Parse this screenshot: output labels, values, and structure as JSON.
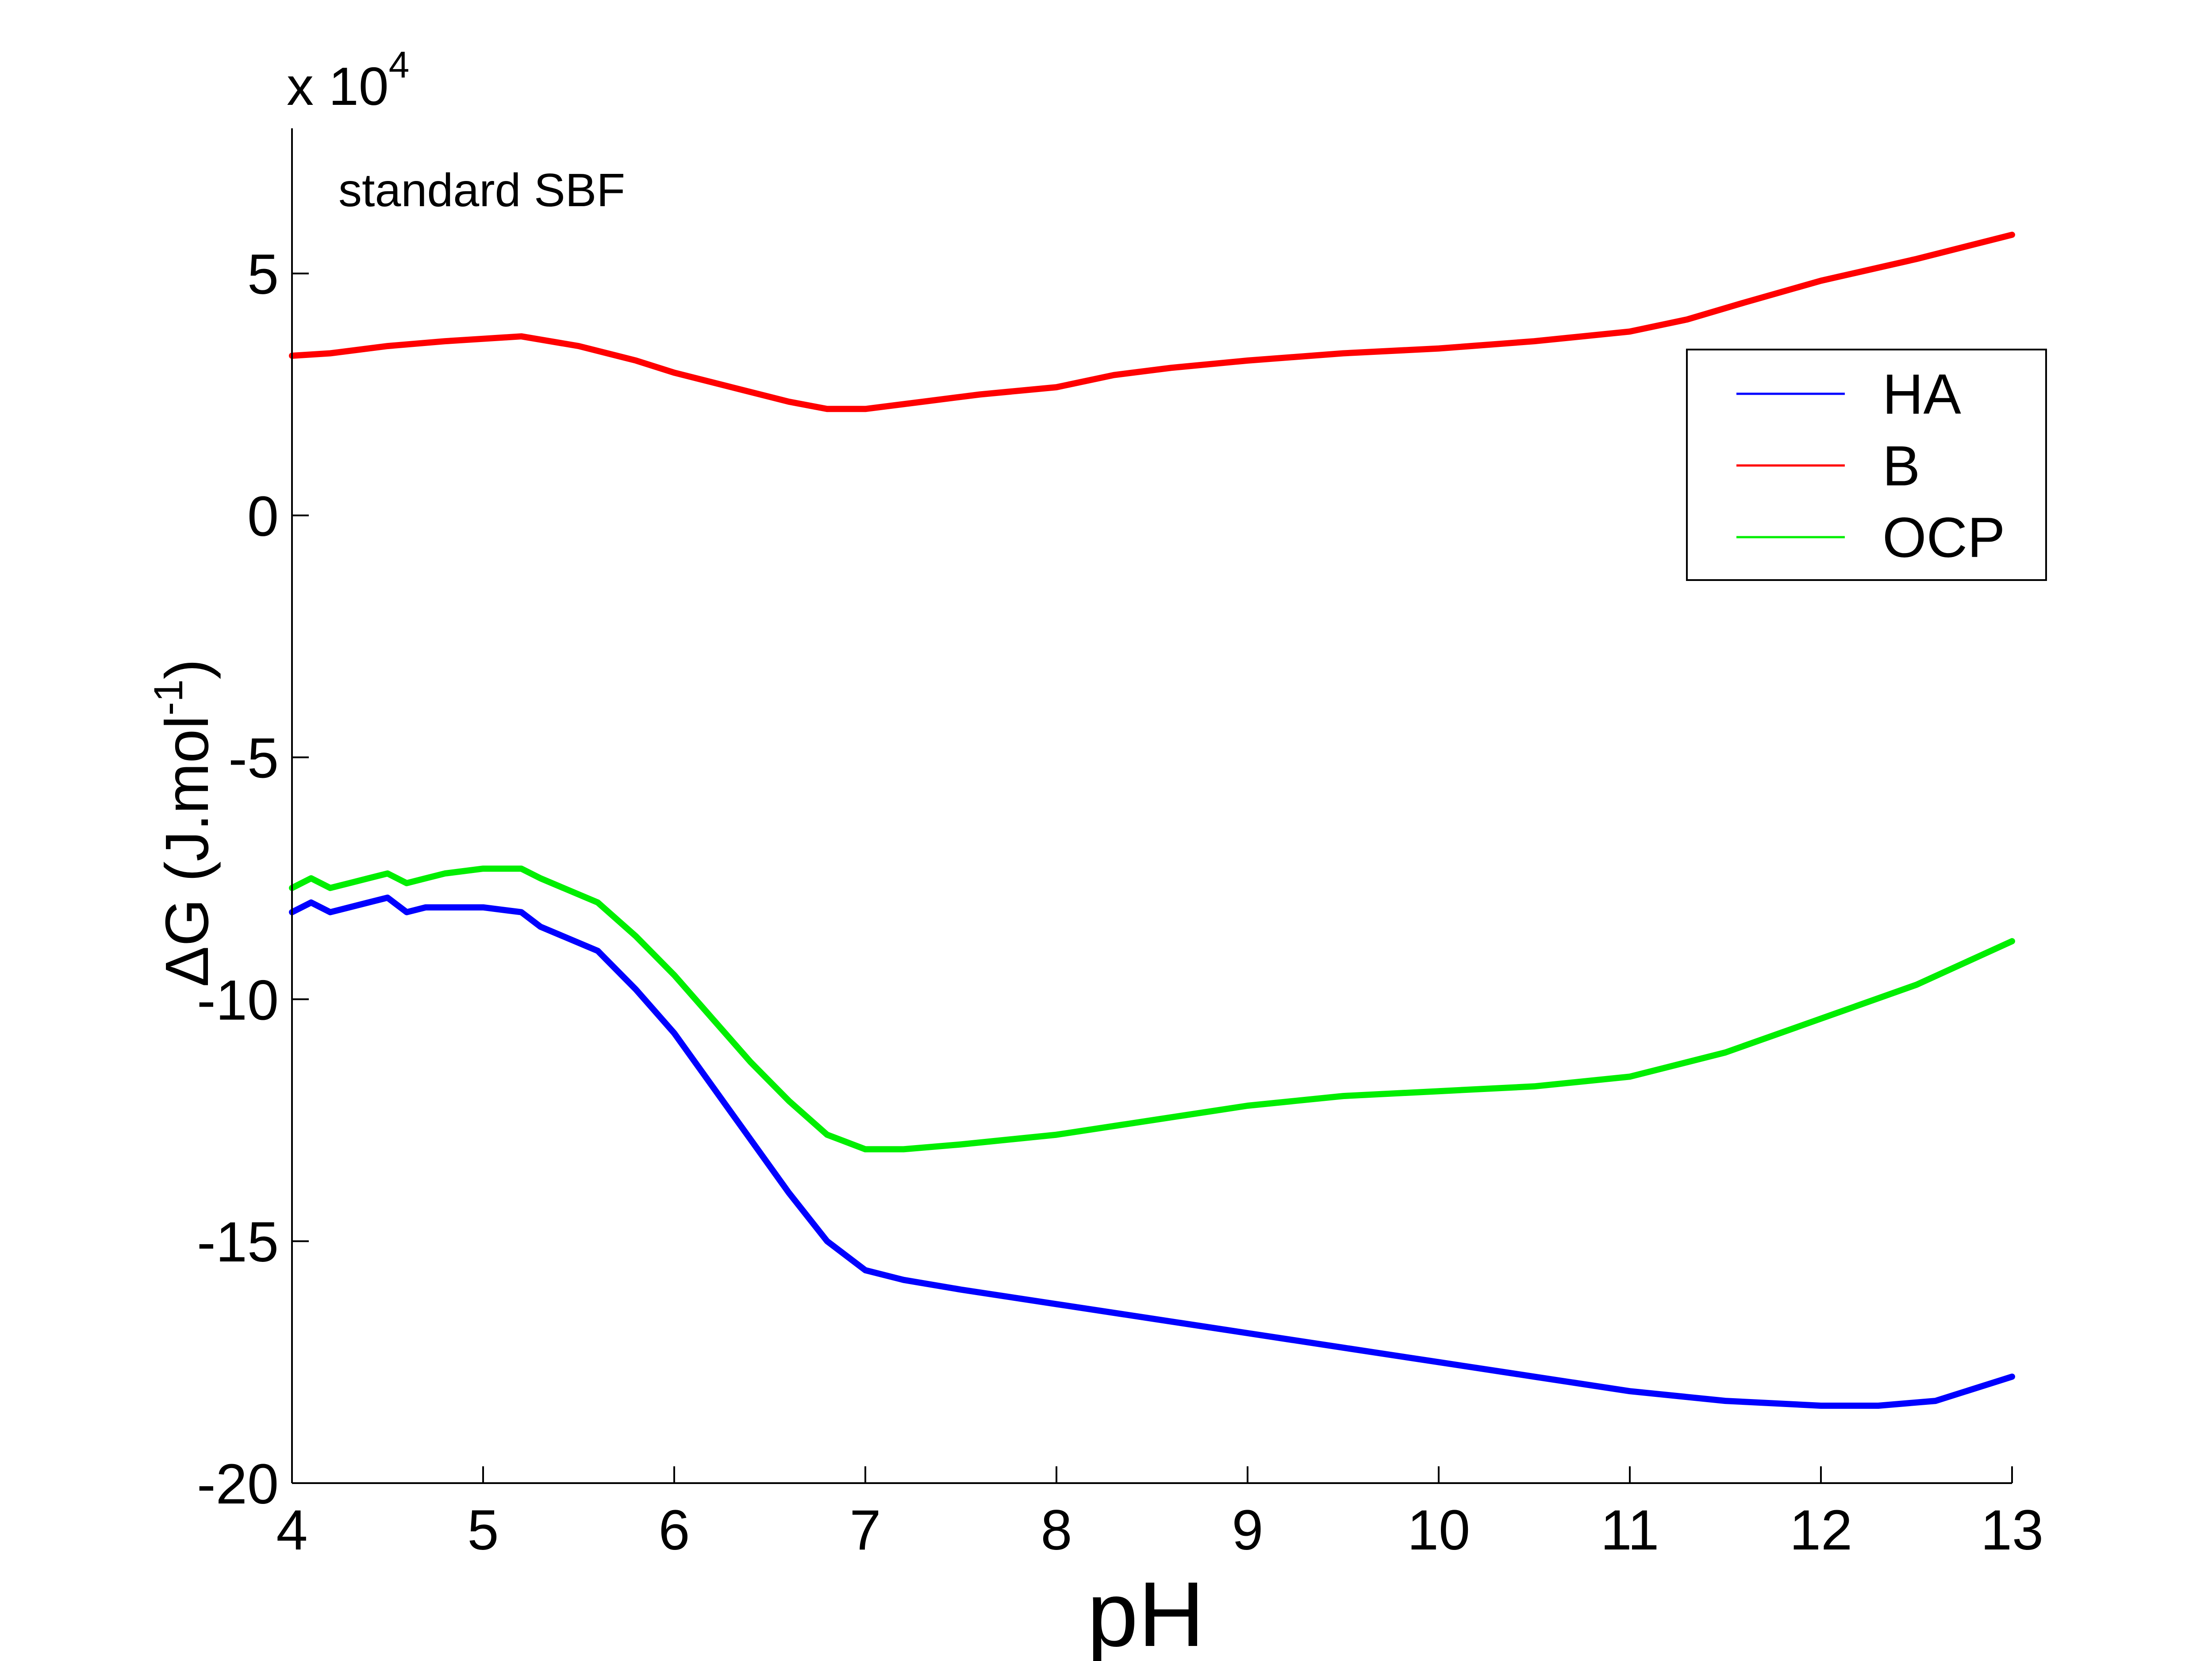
{
  "chart_data": {
    "type": "line",
    "annotation": "standard SBF",
    "xlabel": "pH",
    "ylabel_main": "ΔG (J.mol",
    "ylabel_sup": "-1",
    "ylabel_close": ")",
    "y_multiplier_prefix": "x 10",
    "y_multiplier_exp": "4",
    "xlim": [
      4,
      13
    ],
    "ylim": [
      -20,
      8
    ],
    "xticks": [
      4,
      5,
      6,
      7,
      8,
      9,
      10,
      11,
      12,
      13
    ],
    "xtick_labels": [
      "4",
      "5",
      "6",
      "7",
      "8",
      "9",
      "10",
      "11",
      "12",
      "13"
    ],
    "yticks": [
      -20,
      -15,
      -10,
      -5,
      0,
      5
    ],
    "ytick_labels": [
      "-20",
      "-15",
      "-10",
      "-5",
      "0",
      "5"
    ],
    "grid": false,
    "legend_position": "top-right",
    "series": [
      {
        "name": "HA",
        "color": "#0000ff",
        "x": [
          4,
          4.1,
          4.2,
          4.3,
          4.4,
          4.5,
          4.6,
          4.7,
          4.8,
          5,
          5.2,
          5.3,
          5.6,
          5.8,
          6,
          6.2,
          6.4,
          6.6,
          6.8,
          7,
          7.2,
          7.5,
          8,
          8.5,
          9,
          9.5,
          10,
          10.5,
          11,
          11.5,
          12,
          12.3,
          12.6,
          13
        ],
        "y": [
          -8.2,
          -8.0,
          -8.2,
          -8.1,
          -8.0,
          -7.9,
          -8.2,
          -8.1,
          -8.1,
          -8.1,
          -8.2,
          -8.5,
          -9.0,
          -9.8,
          -10.7,
          -11.8,
          -12.9,
          -14.0,
          -15.0,
          -15.6,
          -15.8,
          -16.0,
          -16.3,
          -16.6,
          -16.9,
          -17.2,
          -17.5,
          -17.8,
          -18.1,
          -18.3,
          -18.4,
          -18.4,
          -18.3,
          -17.8
        ]
      },
      {
        "name": "B",
        "color": "#ff0000",
        "x": [
          4,
          4.2,
          4.5,
          4.8,
          5,
          5.2,
          5.5,
          5.8,
          6,
          6.3,
          6.6,
          6.8,
          7,
          7.3,
          7.6,
          8,
          8.3,
          8.6,
          9,
          9.5,
          10,
          10.5,
          11,
          11.3,
          11.6,
          12,
          12.5,
          13
        ],
        "y": [
          3.3,
          3.35,
          3.5,
          3.6,
          3.65,
          3.7,
          3.5,
          3.2,
          2.95,
          2.65,
          2.35,
          2.2,
          2.2,
          2.35,
          2.5,
          2.65,
          2.9,
          3.05,
          3.2,
          3.35,
          3.45,
          3.6,
          3.8,
          4.05,
          4.4,
          4.85,
          5.3,
          5.8
        ]
      },
      {
        "name": "OCP",
        "color": "#00ee00",
        "x": [
          4,
          4.1,
          4.2,
          4.3,
          4.4,
          4.5,
          4.6,
          4.7,
          4.8,
          5,
          5.2,
          5.3,
          5.6,
          5.8,
          6,
          6.2,
          6.4,
          6.6,
          6.8,
          7,
          7.2,
          7.5,
          8,
          8.5,
          9,
          9.5,
          10,
          10.5,
          11,
          11.5,
          12,
          12.5,
          13
        ],
        "y": [
          -7.7,
          -7.5,
          -7.7,
          -7.6,
          -7.5,
          -7.4,
          -7.6,
          -7.5,
          -7.4,
          -7.3,
          -7.3,
          -7.5,
          -8.0,
          -8.7,
          -9.5,
          -10.4,
          -11.3,
          -12.1,
          -12.8,
          -13.1,
          -13.1,
          -13.0,
          -12.8,
          -12.5,
          -12.2,
          -12.0,
          -11.9,
          -11.8,
          -11.6,
          -11.1,
          -10.4,
          -9.7,
          -8.8
        ]
      }
    ]
  }
}
